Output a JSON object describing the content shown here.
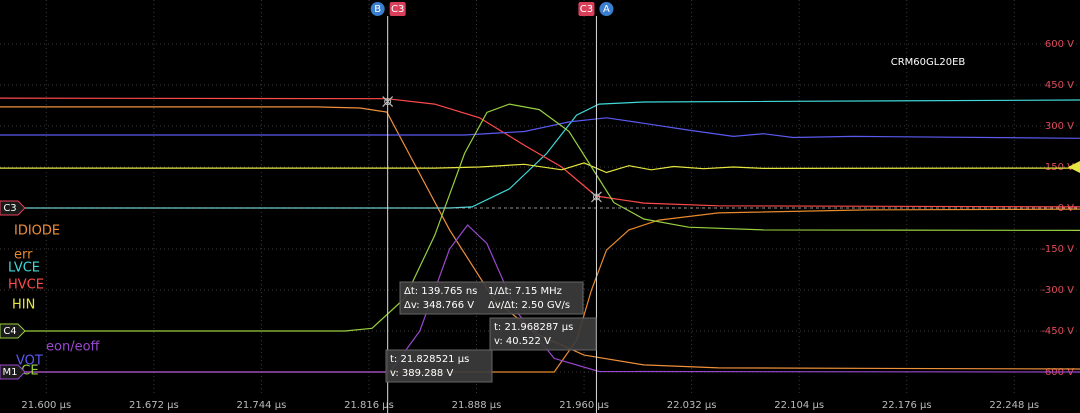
{
  "chart_data": {
    "type": "line",
    "title": "CRM60GL20EB",
    "xlim": [
      21.569,
      22.292
    ],
    "ylim": [
      -684,
      761
    ],
    "xticks": [
      {
        "value": 21.6,
        "label": "21.600 µs"
      },
      {
        "value": 21.672,
        "label": "21.672 µs"
      },
      {
        "value": 21.744,
        "label": "21.744 µs"
      },
      {
        "value": 21.816,
        "label": "21.816 µs"
      },
      {
        "value": 21.888,
        "label": "21.888 µs"
      },
      {
        "value": 21.96,
        "label": "21.960 µs"
      },
      {
        "value": 22.032,
        "label": "22.032 µs"
      },
      {
        "value": 22.104,
        "label": "22.104 µs"
      },
      {
        "value": 22.176,
        "label": "22.176 µs"
      },
      {
        "value": 22.248,
        "label": "22.248 µs"
      }
    ],
    "yticks": [
      {
        "value": 600,
        "label": "600 V"
      },
      {
        "value": 450,
        "label": "450 V"
      },
      {
        "value": 300,
        "label": "300 V"
      },
      {
        "value": 150,
        "label": "150 V"
      },
      {
        "value": 0,
        "label": "0 V"
      },
      {
        "value": -150,
        "label": "-150 V"
      },
      {
        "value": -300,
        "label": "-300 V"
      },
      {
        "value": -450,
        "label": "-450 V"
      },
      {
        "value": -600,
        "label": "-600 V"
      }
    ],
    "grid": true,
    "series": [
      {
        "name": "IDIODE",
        "color": "#f0903c",
        "x": [
          21.569,
          21.78,
          21.81,
          21.828,
          21.845,
          21.87,
          21.9,
          21.93,
          21.96,
          22.0,
          22.05,
          22.292
        ],
        "values": [
          370,
          370,
          366,
          351,
          176,
          -80,
          -337,
          -465,
          -538,
          -574,
          -585,
          -589
        ]
      },
      {
        "name": "err",
        "color": "#e88a2c",
        "x": [
          21.569,
          21.94,
          21.955,
          21.965,
          21.975,
          21.99,
          22.01,
          22.05,
          22.15,
          22.292
        ],
        "values": [
          -600,
          -600,
          -483,
          -300,
          -154,
          -80,
          -44,
          -18,
          -7,
          -4
        ]
      },
      {
        "name": "LVCE",
        "color": "#40d8d8",
        "x": [
          21.569,
          21.87,
          21.885,
          21.91,
          21.935,
          21.955,
          21.97,
          22.0,
          22.292
        ],
        "values": [
          0,
          0,
          4,
          70,
          200,
          340,
          380,
          388,
          395
        ]
      },
      {
        "name": "HVCE",
        "color": "#ff4a4a",
        "x": [
          21.569,
          21.828,
          21.86,
          21.89,
          21.92,
          21.945,
          21.968,
          22.0,
          22.05,
          22.292
        ],
        "values": [
          402,
          400,
          380,
          330,
          230,
          150,
          44,
          18,
          8,
          4
        ]
      },
      {
        "name": "HIN",
        "color": "#e6e640",
        "x": [
          21.569,
          21.86,
          21.89,
          21.92,
          21.945,
          21.96,
          21.975,
          21.99,
          22.005,
          22.02,
          22.04,
          22.06,
          22.08,
          22.292
        ],
        "values": [
          146,
          146,
          150,
          160,
          140,
          165,
          130,
          155,
          140,
          152,
          144,
          150,
          145,
          146
        ]
      },
      {
        "name": "eon/eoff",
        "color": "#9a48d0",
        "x": [
          21.569,
          21.83,
          21.85,
          21.87,
          21.882,
          21.895,
          21.915,
          21.94,
          21.97,
          22.292
        ],
        "values": [
          -600,
          -600,
          -450,
          -150,
          -62,
          -130,
          -380,
          -550,
          -598,
          -600
        ]
      },
      {
        "name": "VOT",
        "color": "#5a5af0",
        "x": [
          21.569,
          21.88,
          21.92,
          21.95,
          21.975,
          22.0,
          22.03,
          22.06,
          22.08,
          22.1,
          22.14,
          22.292
        ],
        "values": [
          267,
          267,
          280,
          315,
          330,
          310,
          285,
          262,
          272,
          258,
          262,
          255
        ]
      },
      {
        "name": "LCE",
        "color": "#98d040",
        "x": [
          21.569,
          21.8,
          21.818,
          21.84,
          21.86,
          21.88,
          21.895,
          21.91,
          21.93,
          21.95,
          21.965,
          21.98,
          22.0,
          22.03,
          22.08,
          22.292
        ],
        "values": [
          -450,
          -450,
          -440,
          -330,
          -100,
          200,
          350,
          380,
          360,
          280,
          150,
          20,
          -40,
          -70,
          -80,
          -82
        ]
      }
    ],
    "badges": [
      {
        "label": "C3",
        "level": 0,
        "color": "#e8405a"
      },
      {
        "label": "C4",
        "level": -450,
        "color": "#98d040"
      },
      {
        "label": "M1",
        "level": -600,
        "color": "#9a48d0"
      }
    ],
    "trigger_level": 150,
    "cursors": [
      {
        "label": "B",
        "channel": "C3",
        "t": 21.828521,
        "v": 389.288,
        "t_label": "t: 21.828521 µs",
        "v_label": "v: 389.288 V"
      },
      {
        "label": "A",
        "channel": "C3",
        "t": 21.968287,
        "v": 40.522,
        "t_label": "t: 21.968287 µs",
        "v_label": "v: 40.522 V"
      }
    ],
    "delta": [
      "Δt: 139.765 ns",
      "1/Δt: 7.15 MHz",
      "Δv: 348.766 V",
      "Δv/Δt: 2.50 GV/s"
    ]
  }
}
